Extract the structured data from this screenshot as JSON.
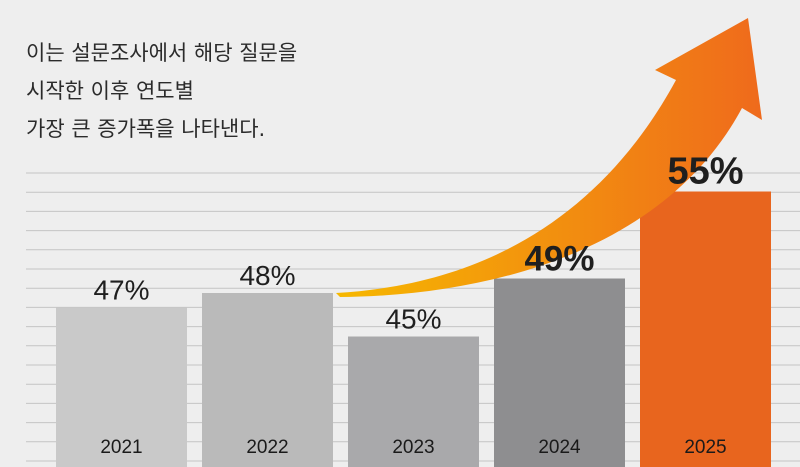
{
  "annotation": {
    "lines": [
      "이는 설문조사에서 해당 질문을",
      "시작한 이후 연도별",
      "가장 큰 증가폭을 나타낸다."
    ]
  },
  "chart_data": {
    "type": "bar",
    "categories": [
      "2021",
      "2022",
      "2023",
      "2024",
      "2025"
    ],
    "values": [
      47,
      48,
      45,
      49,
      55
    ],
    "value_labels": [
      "47%",
      "48%",
      "45%",
      "49%",
      "55%"
    ],
    "unit": "%",
    "ylim": [
      36,
      57
    ],
    "grid": true,
    "bar_colors": [
      "#c9c9c9",
      "#bababa",
      "#a9a9ab",
      "#8e8e90",
      "#e8651e"
    ],
    "category_label_colors": [
      "#1a1a1a",
      "#1a1a1a",
      "#1a1a1a",
      "#1a1a1a",
      "#1a1a1a"
    ],
    "bold_value_labels": [
      false,
      false,
      false,
      true,
      true
    ],
    "arrow_colors": [
      "#f6b800",
      "#ef6a1c"
    ]
  }
}
